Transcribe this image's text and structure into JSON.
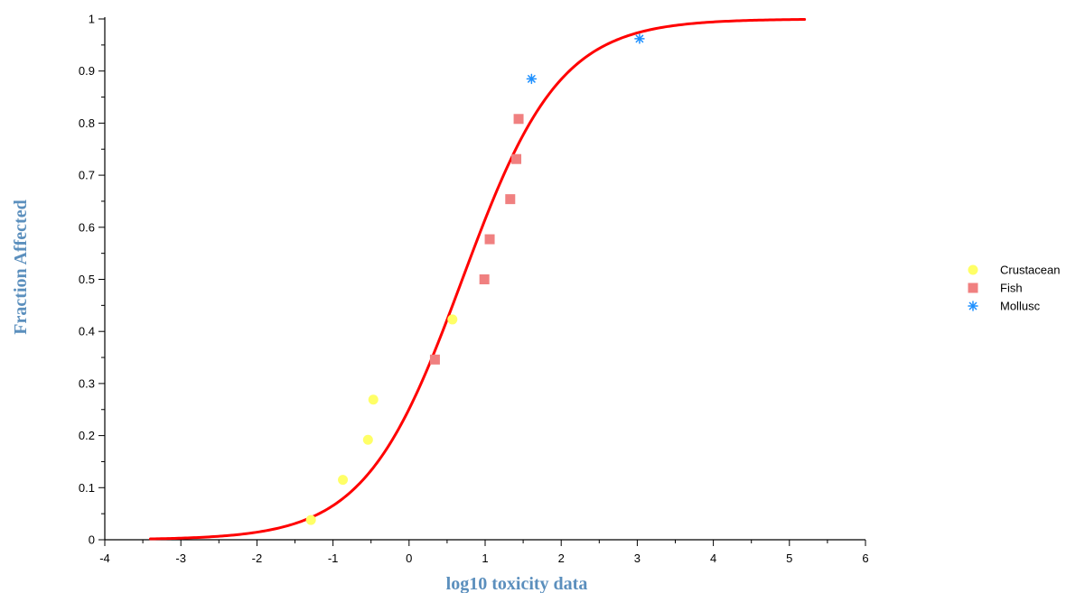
{
  "chart_data": {
    "type": "scatter",
    "title": "",
    "xlabel": "log10 toxicity data",
    "ylabel": "Fraction Affected",
    "xlim": [
      -4,
      6
    ],
    "ylim": [
      0,
      1
    ],
    "x_ticks": [
      -4,
      -3,
      -2,
      -1,
      0,
      1,
      2,
      3,
      4,
      5,
      6
    ],
    "y_ticks": [
      0,
      0.1,
      0.2,
      0.3,
      0.4,
      0.5,
      0.6,
      0.7,
      0.8,
      0.9,
      1
    ],
    "x_tick_labels": [
      "-4",
      "-3",
      "-2",
      "-1",
      "0",
      "1",
      "2",
      "3",
      "4",
      "5",
      "6"
    ],
    "y_tick_labels": [
      "0",
      "0.1",
      "0.2",
      "0.3",
      "0.4",
      "0.5",
      "0.6",
      "0.7",
      "0.8",
      "0.9",
      "1"
    ],
    "grid": false,
    "legend_position": "right",
    "series": [
      {
        "name": "Crustacean",
        "marker": "circle",
        "color": "#ffff66",
        "points": [
          {
            "x": -1.29,
            "y": 0.038
          },
          {
            "x": -0.87,
            "y": 0.115
          },
          {
            "x": -0.54,
            "y": 0.192
          },
          {
            "x": -0.47,
            "y": 0.269
          },
          {
            "x": 0.57,
            "y": 0.423
          }
        ]
      },
      {
        "name": "Fish",
        "marker": "square",
        "color": "#f08080",
        "points": [
          {
            "x": 0.34,
            "y": 0.346
          },
          {
            "x": 0.99,
            "y": 0.5
          },
          {
            "x": 1.06,
            "y": 0.577
          },
          {
            "x": 1.33,
            "y": 0.654
          },
          {
            "x": 1.41,
            "y": 0.731
          },
          {
            "x": 1.44,
            "y": 0.808
          }
        ]
      },
      {
        "name": "Mollusc",
        "marker": "asterisk",
        "color": "#1e90ff",
        "points": [
          {
            "x": 1.61,
            "y": 0.885
          },
          {
            "x": 3.03,
            "y": 0.962
          }
        ]
      }
    ],
    "fit_curve": {
      "type": "logistic_cdf",
      "color": "#ff0000",
      "location": 0.7,
      "scale": 0.64,
      "x_range": [
        -3.4,
        5.2
      ]
    }
  }
}
